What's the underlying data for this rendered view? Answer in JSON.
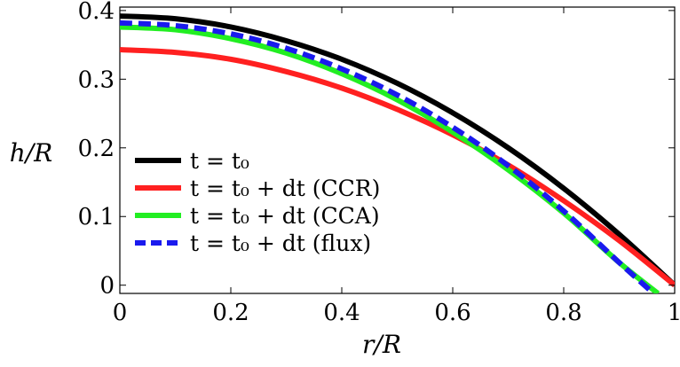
{
  "chart_data": {
    "type": "line",
    "xlabel": "r/R",
    "ylabel": "h/R",
    "xlim": [
      0,
      1
    ],
    "ylim": [
      -0.012,
      0.405
    ],
    "x_ticks": [
      "0",
      "0.2",
      "0.4",
      "0.6",
      "0.8",
      "1"
    ],
    "x_tick_values": [
      0,
      0.2,
      0.4,
      0.6,
      0.8,
      1
    ],
    "y_ticks": [
      "0",
      "0.1",
      "0.2",
      "0.3",
      "0.4"
    ],
    "y_tick_values": [
      0,
      0.1,
      0.2,
      0.3,
      0.4
    ],
    "legend_position": "bottom-left",
    "series": [
      {
        "name": "t = t0",
        "label": "t = t₀",
        "color": "#000000",
        "dash": "solid",
        "x": [
          0,
          0.1,
          0.2,
          0.3,
          0.4,
          0.5,
          0.6,
          0.7,
          0.8,
          0.9,
          1.0
        ],
        "y": [
          0.392,
          0.388,
          0.376,
          0.356,
          0.329,
          0.294,
          0.251,
          0.2,
          0.141,
          0.074,
          0.0
        ]
      },
      {
        "name": "t = t0 + dt (CCR)",
        "label": "t = t₀ + dt (CCR)",
        "color": "#ff2020",
        "dash": "solid",
        "x": [
          0,
          0.1,
          0.2,
          0.3,
          0.4,
          0.5,
          0.6,
          0.7,
          0.8,
          0.9,
          1.0
        ],
        "y": [
          0.343,
          0.339,
          0.329,
          0.311,
          0.287,
          0.256,
          0.219,
          0.175,
          0.123,
          0.065,
          0.0
        ]
      },
      {
        "name": "t = t0 + dt (CCA)",
        "label": "t = t₀ + dt (CCA)",
        "color": "#22ee22",
        "dash": "solid",
        "x": [
          0,
          0.1,
          0.2,
          0.3,
          0.4,
          0.5,
          0.6,
          0.7,
          0.8,
          0.9,
          0.97
        ],
        "y": [
          0.376,
          0.372,
          0.359,
          0.338,
          0.308,
          0.27,
          0.223,
          0.168,
          0.105,
          0.033,
          -0.012
        ]
      },
      {
        "name": "t = t0 + dt (flux)",
        "label": "t = t₀ + dt (flux)",
        "color": "#1a1aee",
        "dash": "dashed",
        "x": [
          0,
          0.1,
          0.2,
          0.3,
          0.4,
          0.5,
          0.6,
          0.7,
          0.8,
          0.9,
          0.962
        ],
        "y": [
          0.382,
          0.378,
          0.366,
          0.345,
          0.315,
          0.277,
          0.23,
          0.174,
          0.108,
          0.033,
          -0.012
        ]
      }
    ]
  }
}
